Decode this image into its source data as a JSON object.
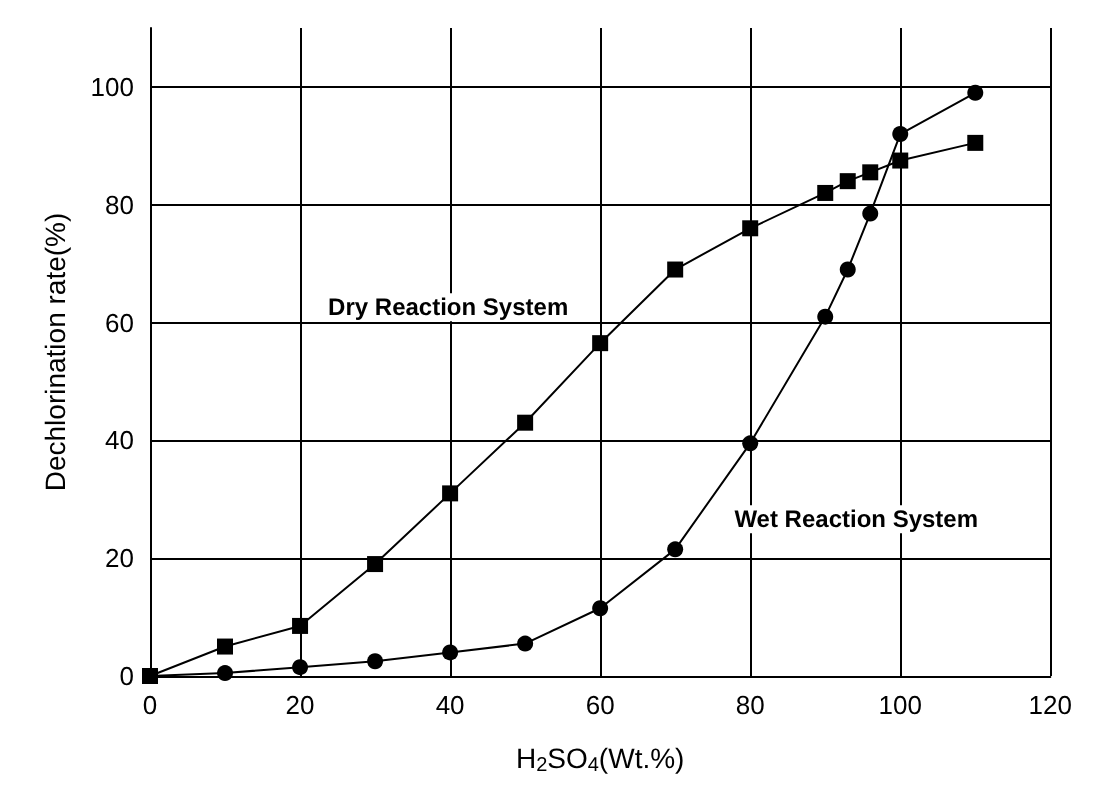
{
  "chart_data": {
    "type": "line",
    "xlabel": "H$_{2}$SO$_{4}$(Wt.%)",
    "ylabel": "Dechlorination rate(%)",
    "xlim": [
      0,
      120
    ],
    "xticks": [
      0,
      20,
      40,
      60,
      80,
      100,
      120
    ],
    "ylim": [
      0,
      110
    ],
    "yticks": [
      0,
      20,
      40,
      60,
      80,
      100
    ],
    "grid": true,
    "legend": false,
    "line_style": "solid",
    "series": [
      {
        "name": "Dry Reaction System",
        "color": "#000000",
        "marker": "square",
        "x": [
          0,
          10,
          20,
          30,
          40,
          50,
          60,
          70,
          80,
          90,
          93,
          96,
          100,
          110
        ],
        "values": [
          0,
          5,
          8.5,
          19,
          31,
          43,
          56.5,
          69,
          76,
          82,
          84,
          85.5,
          87.5,
          90.5
        ]
      },
      {
        "name": "Wet Reaction System",
        "color": "#000000",
        "marker": "circle",
        "x": [
          0,
          10,
          20,
          30,
          40,
          50,
          60,
          70,
          80,
          90,
          93,
          96,
          100,
          110
        ],
        "values": [
          0,
          0.5,
          1.5,
          2.5,
          4,
          5.5,
          11.5,
          21.5,
          39.5,
          61,
          69,
          78.5,
          92,
          99
        ]
      }
    ]
  }
}
